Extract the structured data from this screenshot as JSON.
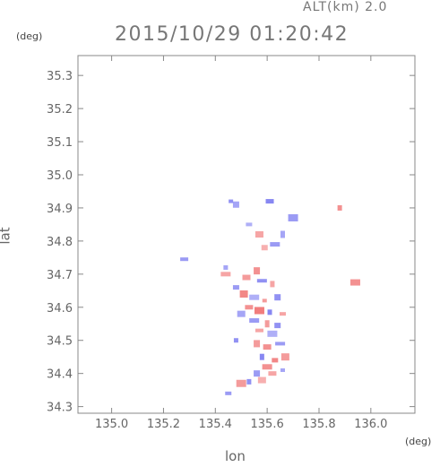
{
  "header": {
    "altitude_label": "ALT(km) 2.0",
    "timestamp": "2015/10/29 01:20:42"
  },
  "chart_data": {
    "type": "heatmap",
    "title": "2015/10/29 01:20:42",
    "subtitle": "ALT(km) 2.0",
    "xlabel": "lon",
    "ylabel": "lat",
    "x_unit": "(deg)",
    "y_unit": "(deg)",
    "xlim": [
      134.87,
      136.17
    ],
    "ylim": [
      34.28,
      35.36
    ],
    "x_ticks": [
      135.0,
      135.2,
      135.4,
      135.6,
      135.8,
      136.0
    ],
    "x_tick_labels": [
      "135.0",
      "135.2",
      "135.4",
      "135.6",
      "135.8",
      "136.0"
    ],
    "y_ticks": [
      34.3,
      34.4,
      34.5,
      34.6,
      34.7,
      34.8,
      34.9,
      35.0,
      35.1,
      35.2,
      35.3
    ],
    "y_tick_labels": [
      "34.3",
      "34.4",
      "34.5",
      "34.6",
      "34.7",
      "34.8",
      "34.9",
      "35.0",
      "35.1",
      "35.2",
      "35.3"
    ],
    "grid": false,
    "colors": {
      "positive": "#f07070",
      "negative": "#7070f0",
      "axis": "#888888"
    },
    "points": [
      {
        "x": 135.46,
        "y": 34.92,
        "v": -0.6
      },
      {
        "x": 135.48,
        "y": 34.91,
        "v": -0.4
      },
      {
        "x": 135.61,
        "y": 34.92,
        "v": -0.7
      },
      {
        "x": 135.7,
        "y": 34.87,
        "v": -0.5
      },
      {
        "x": 135.88,
        "y": 34.9,
        "v": 0.6
      },
      {
        "x": 135.53,
        "y": 34.85,
        "v": -0.3
      },
      {
        "x": 135.57,
        "y": 34.82,
        "v": 0.4
      },
      {
        "x": 135.63,
        "y": 34.79,
        "v": -0.5
      },
      {
        "x": 135.66,
        "y": 34.82,
        "v": -0.4
      },
      {
        "x": 135.59,
        "y": 34.78,
        "v": 0.3
      },
      {
        "x": 135.28,
        "y": 34.745,
        "v": -0.5
      },
      {
        "x": 135.94,
        "y": 34.675,
        "v": 0.6
      },
      {
        "x": 135.44,
        "y": 34.72,
        "v": -0.4
      },
      {
        "x": 135.56,
        "y": 34.71,
        "v": 0.6
      },
      {
        "x": 135.52,
        "y": 34.69,
        "v": 0.5
      },
      {
        "x": 135.58,
        "y": 34.68,
        "v": -0.6
      },
      {
        "x": 135.62,
        "y": 34.67,
        "v": 0.4
      },
      {
        "x": 135.48,
        "y": 34.66,
        "v": -0.5
      },
      {
        "x": 135.51,
        "y": 34.64,
        "v": 0.7
      },
      {
        "x": 135.55,
        "y": 34.63,
        "v": -0.3
      },
      {
        "x": 135.59,
        "y": 34.62,
        "v": 0.5
      },
      {
        "x": 135.64,
        "y": 34.63,
        "v": -0.6
      },
      {
        "x": 135.53,
        "y": 34.6,
        "v": 0.6
      },
      {
        "x": 135.57,
        "y": 34.59,
        "v": 0.8
      },
      {
        "x": 135.61,
        "y": 34.585,
        "v": -0.7
      },
      {
        "x": 135.66,
        "y": 34.58,
        "v": 0.4
      },
      {
        "x": 135.5,
        "y": 34.58,
        "v": -0.4
      },
      {
        "x": 135.55,
        "y": 34.56,
        "v": -0.5
      },
      {
        "x": 135.6,
        "y": 34.55,
        "v": 0.5
      },
      {
        "x": 135.64,
        "y": 34.545,
        "v": -0.6
      },
      {
        "x": 135.57,
        "y": 34.53,
        "v": 0.4
      },
      {
        "x": 135.62,
        "y": 34.52,
        "v": -0.3
      },
      {
        "x": 135.48,
        "y": 34.5,
        "v": -0.6
      },
      {
        "x": 135.56,
        "y": 34.49,
        "v": 0.5
      },
      {
        "x": 135.6,
        "y": 34.48,
        "v": 0.6
      },
      {
        "x": 135.65,
        "y": 34.49,
        "v": -0.5
      },
      {
        "x": 135.58,
        "y": 34.45,
        "v": -0.7
      },
      {
        "x": 135.63,
        "y": 34.44,
        "v": 0.7
      },
      {
        "x": 135.67,
        "y": 34.45,
        "v": 0.5
      },
      {
        "x": 135.6,
        "y": 34.42,
        "v": 0.6
      },
      {
        "x": 135.66,
        "y": 34.41,
        "v": -0.4
      },
      {
        "x": 135.56,
        "y": 34.4,
        "v": -0.5
      },
      {
        "x": 135.62,
        "y": 34.4,
        "v": 0.4
      },
      {
        "x": 135.5,
        "y": 34.37,
        "v": 0.5
      },
      {
        "x": 135.53,
        "y": 34.375,
        "v": -0.6
      },
      {
        "x": 135.45,
        "y": 34.34,
        "v": -0.5
      },
      {
        "x": 135.58,
        "y": 34.38,
        "v": 0.3
      },
      {
        "x": 135.44,
        "y": 34.7,
        "v": 0.4
      }
    ]
  }
}
